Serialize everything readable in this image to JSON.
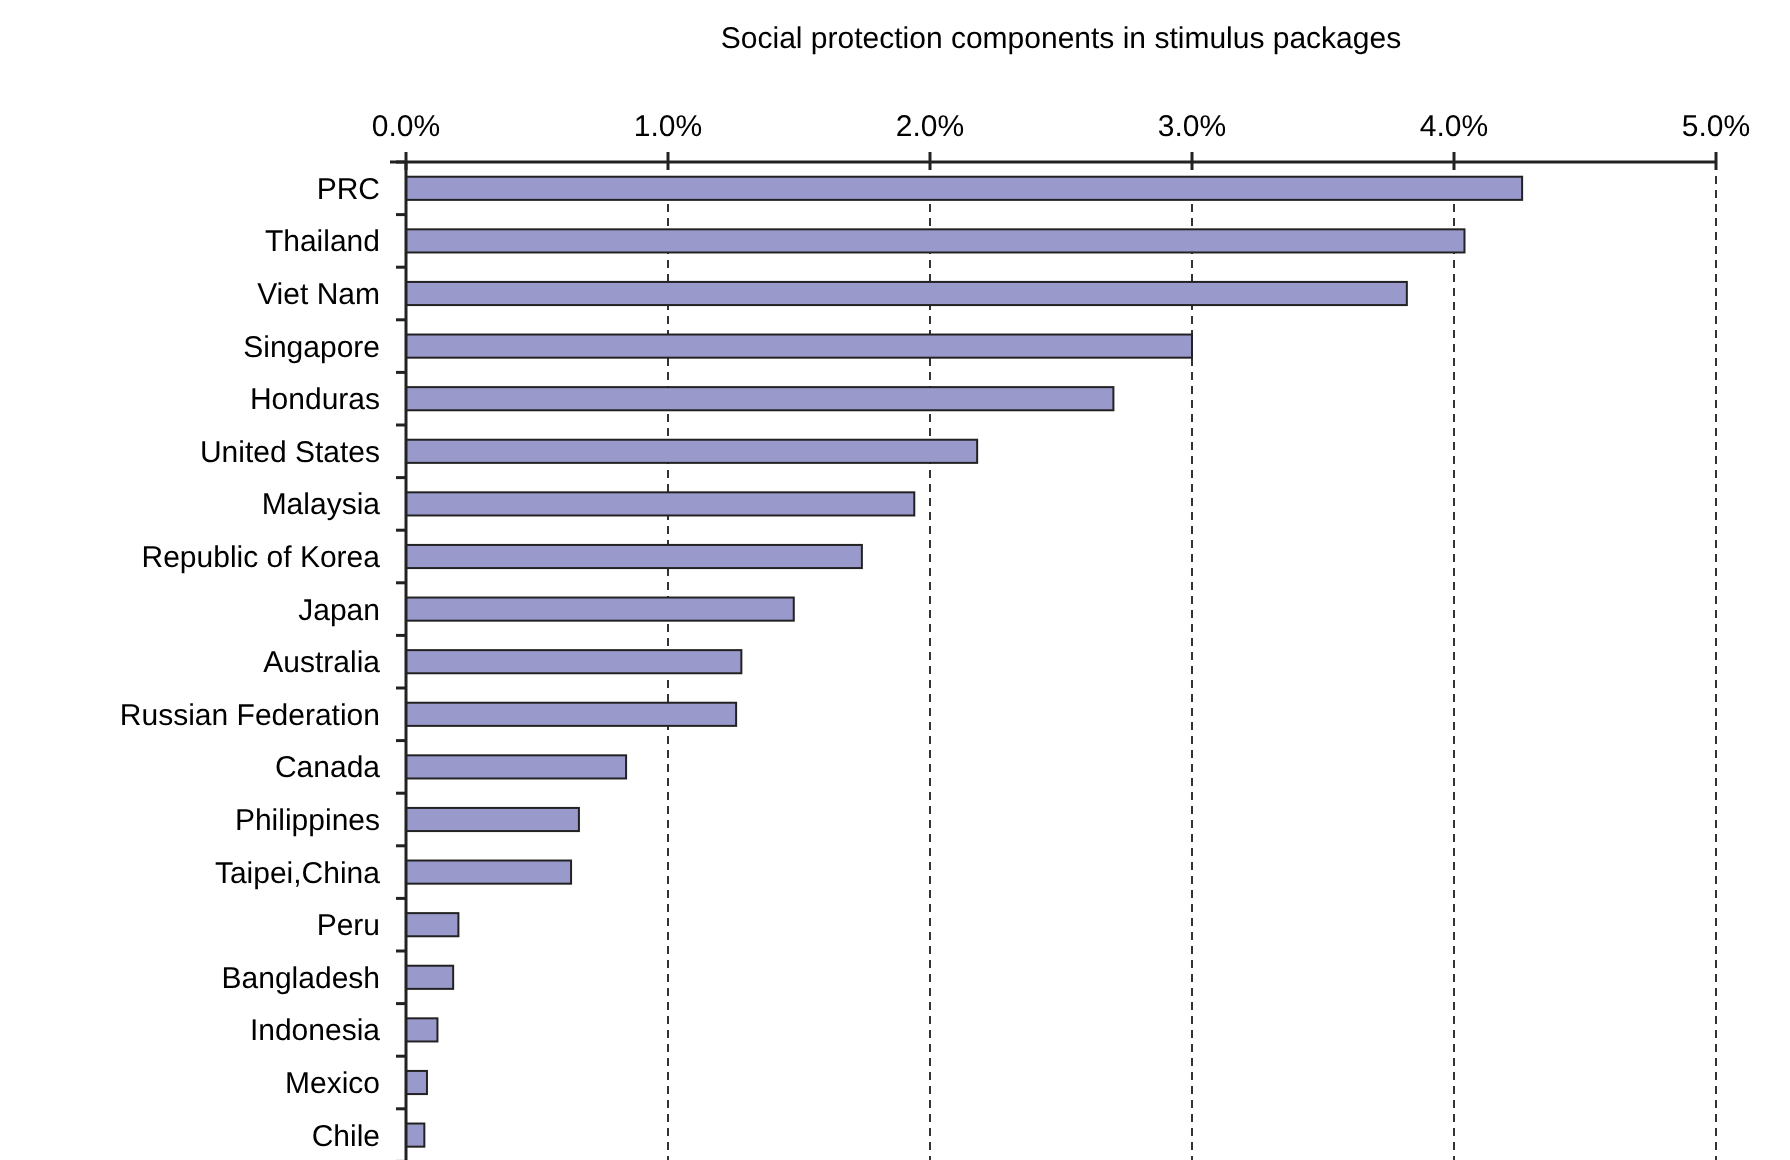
{
  "chart_data": {
    "type": "bar",
    "orientation": "horizontal",
    "title": "Social protection components in stimulus packages",
    "categories": [
      "PRC",
      "Thailand",
      "Viet Nam",
      "Singapore",
      "Honduras",
      "United States",
      "Malaysia",
      "Republic of Korea",
      "Japan",
      "Australia",
      "Russian Federation",
      "Canada",
      "Philippines",
      "Taipei,China",
      "Peru",
      "Bangladesh",
      "Indonesia",
      "Mexico",
      "Chile"
    ],
    "values": [
      4.26,
      4.04,
      3.82,
      3.0,
      2.7,
      2.18,
      1.94,
      1.74,
      1.48,
      1.28,
      1.26,
      0.84,
      0.66,
      0.63,
      0.2,
      0.18,
      0.12,
      0.08,
      0.07
    ],
    "color": "#9999cc",
    "xlim": [
      0,
      5
    ],
    "xticks": [
      {
        "value": 0,
        "label": "0.0%"
      },
      {
        "value": 1,
        "label": "1.0%"
      },
      {
        "value": 2,
        "label": "2.0%"
      },
      {
        "value": 3,
        "label": "3.0%"
      },
      {
        "value": 4,
        "label": "4.0%"
      },
      {
        "value": 5,
        "label": "5.0%"
      }
    ],
    "grid": "x"
  }
}
